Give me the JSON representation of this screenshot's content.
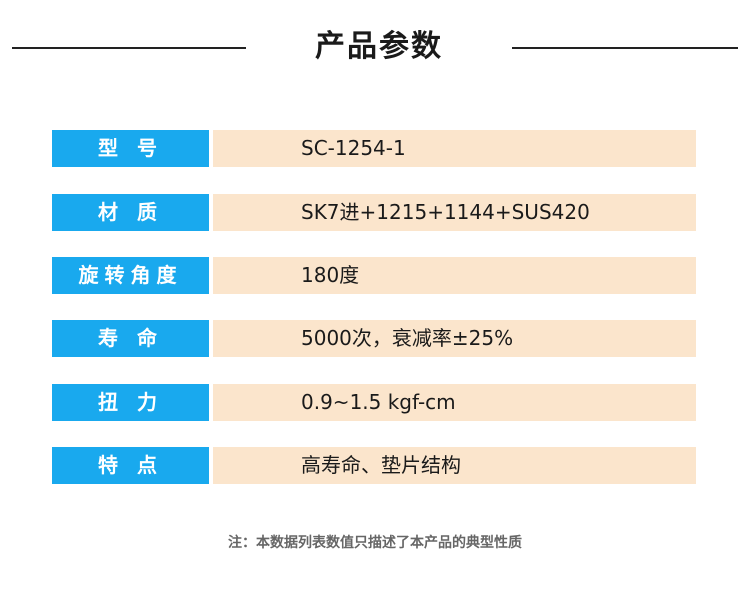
{
  "header": {
    "title": "产品参数"
  },
  "params": [
    {
      "label": "型 号",
      "value": "SC-1254-1"
    },
    {
      "label": "材 质",
      "value": "SK7进+1215+1144+SUS420"
    },
    {
      "label": "旋转角度",
      "value": "180度"
    },
    {
      "label": "寿 命",
      "value": "5000次，衰减率±25%"
    },
    {
      "label": "扭 力",
      "value": "0.9~1.5 kgf-cm"
    },
    {
      "label": "特 点",
      "value": "高寿命、垫片结构"
    }
  ],
  "footnote": "注：本数据列表数值只描述了本产品的典型性质",
  "colors": {
    "label_bg": "#19a9ee",
    "value_bg": "#fbe5cc"
  }
}
